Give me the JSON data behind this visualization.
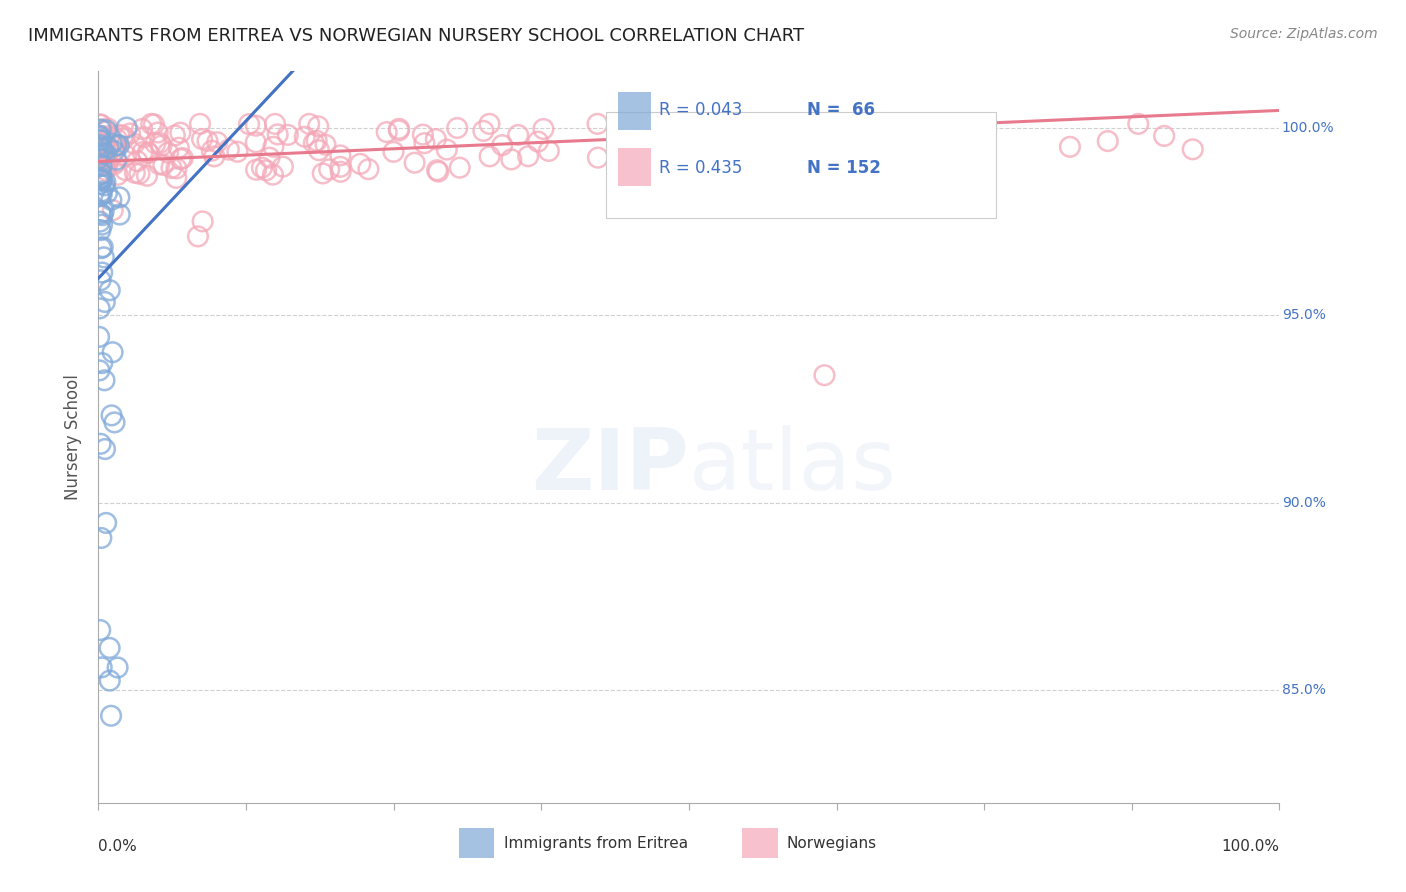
{
  "title": "IMMIGRANTS FROM ERITREA VS NORWEGIAN NURSERY SCHOOL CORRELATION CHART",
  "source": "Source: ZipAtlas.com",
  "ylabel": "Nursery School",
  "color_eritrea": "#7fa8d8",
  "color_norwegian": "#f4a8b8",
  "color_eritrea_line": "#4472c4",
  "color_norwegian_line": "#e87a8e",
  "color_trend_dashed": "#a0c0e0",
  "background_color": "#ffffff",
  "grid_color": "#d0d0d0",
  "title_color": "#222222",
  "axis_label_color": "#555555",
  "right_label_color": "#4472c4",
  "source_color": "#888888",
  "legend_R_eritrea": "R = 0.043",
  "legend_N_eritrea": "N =  66",
  "legend_R_norwegian": "R = 0.435",
  "legend_N_norwegian": "N = 152"
}
